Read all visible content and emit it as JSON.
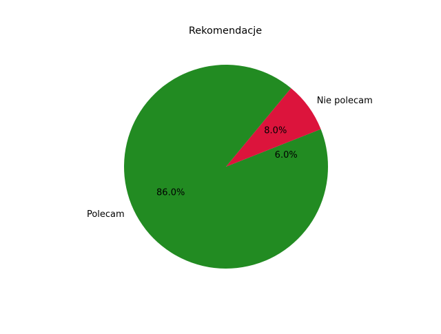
{
  "chart_data": {
    "type": "pie",
    "title": "Rekomendacje",
    "start_angle_deg": 0,
    "direction": "counterclockwise",
    "slices": [
      {
        "label": "",
        "value": 6.0,
        "pct_label": "6.0%",
        "color": "#228B22"
      },
      {
        "label": "Nie polecam",
        "value": 8.0,
        "pct_label": "8.0%",
        "color": "#DC143C"
      },
      {
        "label": "Polecam",
        "value": 86.0,
        "pct_label": "86.0%",
        "color": "#228B22"
      }
    ]
  }
}
